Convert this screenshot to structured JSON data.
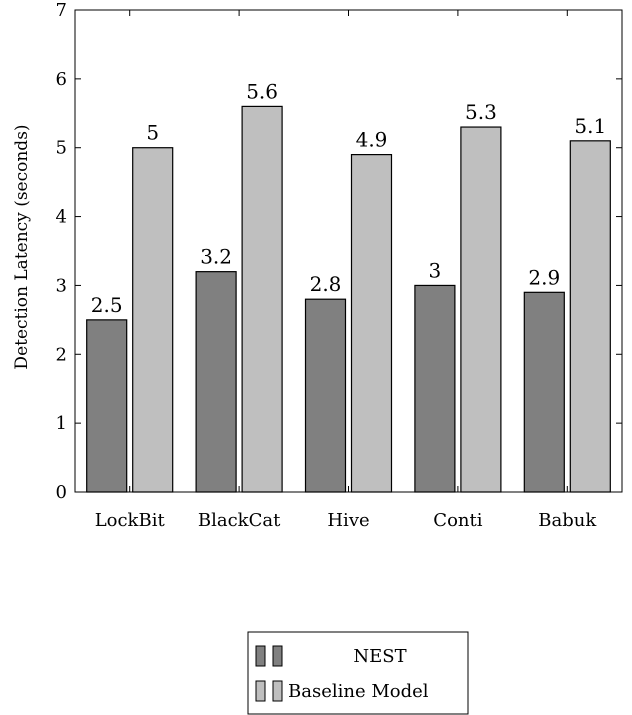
{
  "chart_data": {
    "type": "bar",
    "title": "",
    "xlabel": "",
    "ylabel": "Detection Latency (seconds)",
    "categories": [
      "LockBit",
      "BlackCat",
      "Hive",
      "Conti",
      "Babuk"
    ],
    "series": [
      {
        "name": "NEST",
        "values": [
          2.5,
          3.2,
          2.8,
          3,
          2.9
        ],
        "color": "#808080"
      },
      {
        "name": "Baseline Model",
        "values": [
          5,
          5.6,
          4.9,
          5.3,
          5.1
        ],
        "color": "#bfbfbf"
      }
    ],
    "ylim": [
      0,
      7
    ],
    "yticks": [
      0,
      1,
      2,
      3,
      4,
      5,
      6,
      7
    ],
    "value_labels": [
      [
        "2.5",
        "3.2",
        "2.8",
        "3",
        "2.9"
      ],
      [
        "5",
        "5.6",
        "4.9",
        "5.3",
        "5.1"
      ]
    ],
    "grid": false,
    "legend_position": "bottom-center"
  }
}
